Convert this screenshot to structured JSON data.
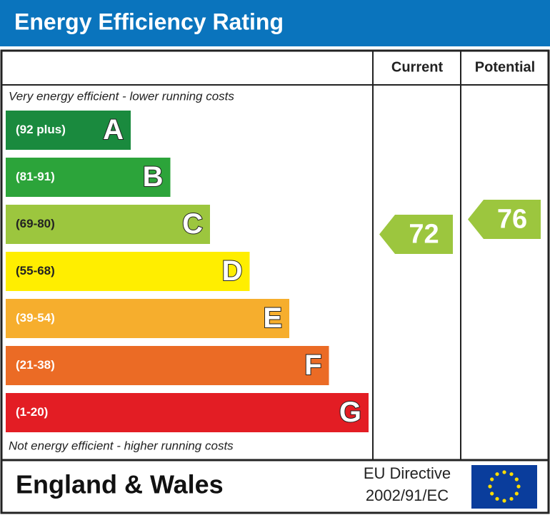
{
  "chart_data": {
    "type": "epc",
    "title": "Energy Efficiency Rating",
    "columns": [
      "Current",
      "Potential"
    ],
    "top_note": "Very energy efficient - lower running costs",
    "bottom_note": "Not energy efficient - higher running costs",
    "bands": [
      {
        "range": "(92 plus)",
        "letter": "A",
        "color": "#1a8a3e"
      },
      {
        "range": "(81-91)",
        "letter": "B",
        "color": "#2ca43a"
      },
      {
        "range": "(69-80)",
        "letter": "C",
        "color": "#9cc63e"
      },
      {
        "range": "(55-68)",
        "letter": "D",
        "color": "#ffee00"
      },
      {
        "range": "(39-54)",
        "letter": "E",
        "color": "#f6ae2d"
      },
      {
        "range": "(21-38)",
        "letter": "F",
        "color": "#eb6b25"
      },
      {
        "range": "(1-20)",
        "letter": "G",
        "color": "#e31d24"
      }
    ],
    "current": 72,
    "potential": 76,
    "footer": {
      "region": "England & Wales",
      "directive_line1": "EU Directive",
      "directive_line2": "2002/91/EC"
    }
  }
}
